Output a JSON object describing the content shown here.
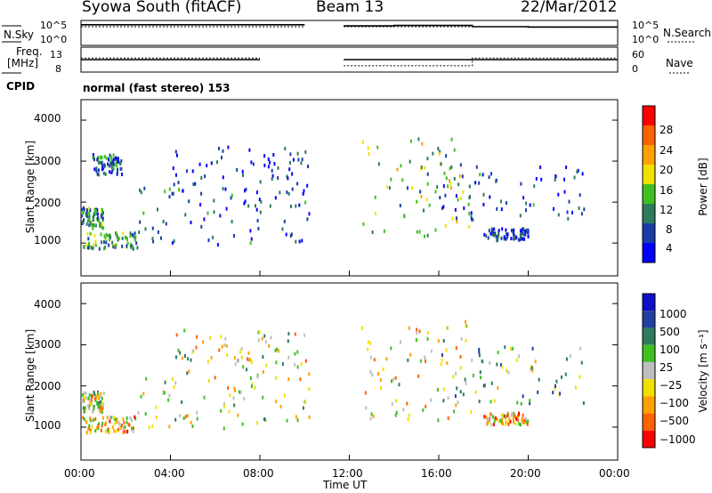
{
  "header": {
    "station": "Syowa South (fitACF)",
    "beam": "Beam 13",
    "date": "22/Mar/2012"
  },
  "strip_labels": {
    "nsky": "N.Sky",
    "nsky_ticks": [
      "10^5",
      "10^0"
    ],
    "nsearch": "N.Search",
    "nsearch_ticks": [
      "10^5",
      "10^0"
    ],
    "freq_line1": "Freq.",
    "freq_line2": "[MHz]",
    "freq_ticks": [
      "13",
      "8"
    ],
    "nave": "Nave",
    "nave_ticks": [
      "60",
      "0"
    ],
    "cpid": "CPID",
    "mode": "normal (fast stereo) 153"
  },
  "panels": {
    "power": {
      "ylabel": "Slant Range [km]",
      "yticks": [
        "4000",
        "3000",
        "2000",
        "1000"
      ],
      "colorbar_label": "Power [dB]",
      "colorbar_ticks": [
        "28",
        "24",
        "20",
        "16",
        "12",
        "8",
        "4"
      ],
      "colors": [
        "#0000ff",
        "#1a3da8",
        "#2c7b5c",
        "#40c020",
        "#f0e000",
        "#ffa000",
        "#ff6000",
        "#ff0000"
      ]
    },
    "velocity": {
      "ylabel": "Slant Range [km]",
      "yticks": [
        "4000",
        "3000",
        "2000",
        "1000"
      ],
      "colorbar_label": "Velocity [m s⁻¹]",
      "colorbar_ticks": [
        "1000",
        "500",
        "100",
        "25",
        "−25",
        "−100",
        "−500",
        "−1000"
      ],
      "colors": [
        "#1010c8",
        "#2040a0",
        "#2c7b5c",
        "#40c020",
        "#bebebe",
        "#f0e000",
        "#ffa000",
        "#ff6000",
        "#ff0000"
      ]
    }
  },
  "xaxis": {
    "label": "Time UT",
    "ticks": [
      "00:00",
      "04:00",
      "08:00",
      "12:00",
      "16:00",
      "20:00",
      "00:00"
    ]
  },
  "chart_data": [
    {
      "type": "line",
      "title": "N.Sky / N.Search",
      "x_hours": [
        0,
        2,
        4,
        6,
        8,
        10,
        10.25,
        11.75,
        14,
        16,
        17.5,
        20,
        24
      ],
      "series": [
        {
          "name": "N.Sky",
          "values_log10": [
            4.6,
            4.6,
            4.6,
            4.6,
            4.6,
            4.6,
            null,
            4.3,
            4.4,
            4.4,
            4.1,
            4.0,
            4.0
          ]
        },
        {
          "name": "N.Search",
          "values_log10": [
            4.1,
            4.1,
            4.1,
            4.1,
            4.1,
            4.1,
            null,
            4.1,
            4.1,
            4.1,
            4.1,
            4.1,
            4.1
          ]
        }
      ]
    },
    {
      "type": "line",
      "title": "Freq. / Nave",
      "x_hours": [
        0,
        4,
        8,
        10.25,
        11.75,
        16,
        17.5,
        20,
        24
      ],
      "series": [
        {
          "name": "Freq.",
          "values_mhz": [
            10.5,
            10.5,
            10.5,
            null,
            10.5,
            10.5,
            10.5,
            10.5,
            10.5
          ]
        },
        {
          "name": "Nave",
          "values": [
            34,
            34,
            34,
            null,
            14,
            14,
            34,
            34,
            34
          ]
        }
      ]
    },
    {
      "type": "scatter",
      "title": "Power [dB]",
      "xlim_hours": [
        0,
        24
      ],
      "ylim_km": [
        200,
        4500
      ],
      "clusters": [
        {
          "t": [
            0,
            1
          ],
          "r": [
            1400,
            1900
          ],
          "v": 10
        },
        {
          "t": [
            0,
            2.5
          ],
          "r": [
            900,
            1300
          ],
          "v": 12
        },
        {
          "t": [
            0.5,
            1.8
          ],
          "r": [
            2700,
            3200
          ],
          "v": 8
        },
        {
          "t": [
            2.5,
            10.2
          ],
          "r": [
            1000,
            2400
          ],
          "v": 7
        },
        {
          "t": [
            4,
            10.2
          ],
          "r": [
            2200,
            3400
          ],
          "v": 5
        },
        {
          "t": [
            12.5,
            17.5
          ],
          "r": [
            1200,
            3600
          ],
          "v": 14
        },
        {
          "t": [
            16,
            22.5
          ],
          "r": [
            1600,
            3000
          ],
          "v": 6
        },
        {
          "t": [
            18,
            20
          ],
          "r": [
            1100,
            1400
          ],
          "v": 5
        }
      ]
    },
    {
      "type": "scatter",
      "title": "Velocity [m s⁻¹]",
      "xlim_hours": [
        0,
        24
      ],
      "ylim_km": [
        200,
        4500
      ],
      "clusters": [
        {
          "t": [
            0,
            1
          ],
          "r": [
            1400,
            1900
          ],
          "v": -60
        },
        {
          "t": [
            0,
            2.5
          ],
          "r": [
            900,
            1300
          ],
          "v": -300
        },
        {
          "t": [
            2.5,
            10.2
          ],
          "r": [
            1000,
            2400
          ],
          "v": -80
        },
        {
          "t": [
            4,
            10.2
          ],
          "r": [
            2200,
            3400
          ],
          "v": -150
        },
        {
          "t": [
            12.5,
            17.5
          ],
          "r": [
            1200,
            3600
          ],
          "v": -200
        },
        {
          "t": [
            16,
            22.5
          ],
          "r": [
            1600,
            3000
          ],
          "v": 200
        },
        {
          "t": [
            18,
            20
          ],
          "r": [
            1100,
            1400
          ],
          "v": -400
        }
      ]
    }
  ]
}
